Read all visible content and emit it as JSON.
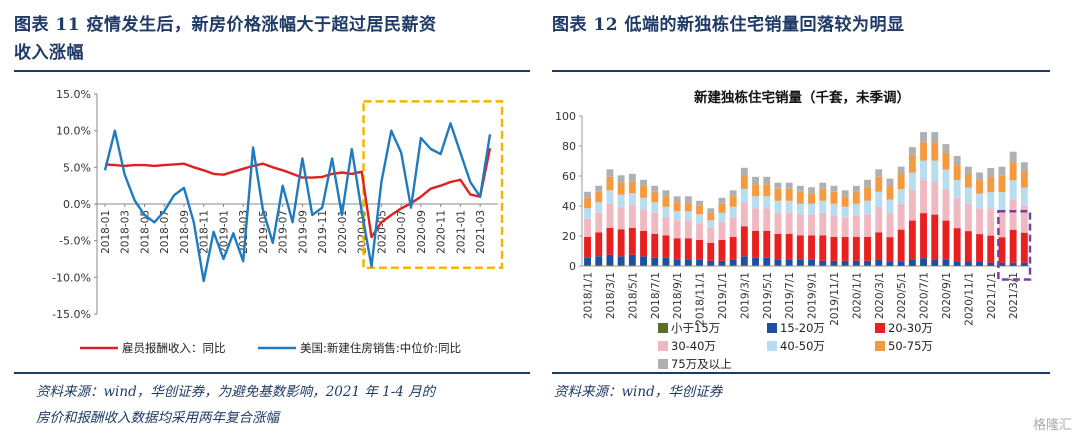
{
  "left": {
    "title_line1": "图表 11   疫情发生后，新房价格涨幅大于超过居民薪资",
    "title_line2": "收入涨幅",
    "source_line1": "资料来源：wind，华创证券，为避免基数影响，2021 年 1-4 月的",
    "source_line2": "房价和报酬收入数据均采用两年复合涨幅"
  },
  "right": {
    "title": "图表 12   低端的新独栋住宅销量回落较为明显",
    "source": "资料来源：wind，华创证券"
  },
  "watermark": "格隆汇",
  "colors": {
    "title": "#1f3a66",
    "red": "#e02020",
    "blue": "#1f7ac0",
    "highlight_yellow": "#f5b400",
    "highlight_purple": "#7a3fa0"
  },
  "chart_data": [
    {
      "type": "line",
      "title": "",
      "x_ticks": [
        "2018-01",
        "2018-03",
        "2018-05",
        "2018-07",
        "2018-09",
        "2018-11",
        "2019-01",
        "2019-03",
        "2019-05",
        "2019-07",
        "2019-09",
        "2019-11",
        "2020-01",
        "2020-03",
        "2020-05",
        "2020-07",
        "2020-09",
        "2020-11",
        "2021-01",
        "2021-03"
      ],
      "y_ticks": [
        "15.0%",
        "10.0%",
        "5.0%",
        "0.0%",
        "-5.0%",
        "-10.0%",
        "-15.0%"
      ],
      "ylim": [
        -15,
        15
      ],
      "x": [
        "2018-01",
        "2018-02",
        "2018-03",
        "2018-04",
        "2018-05",
        "2018-06",
        "2018-07",
        "2018-08",
        "2018-09",
        "2018-10",
        "2018-11",
        "2018-12",
        "2019-01",
        "2019-02",
        "2019-03",
        "2019-04",
        "2019-05",
        "2019-06",
        "2019-07",
        "2019-08",
        "2019-09",
        "2019-10",
        "2019-11",
        "2019-12",
        "2020-01",
        "2020-02",
        "2020-03",
        "2020-04",
        "2020-05",
        "2020-06",
        "2020-07",
        "2020-08",
        "2020-09",
        "2020-10",
        "2020-11",
        "2020-12",
        "2021-01",
        "2021-02",
        "2021-03",
        "2021-04"
      ],
      "series": [
        {
          "name": "雇员报酬收入：同比",
          "color": "#e02020",
          "values": [
            5.4,
            5.3,
            5.2,
            5.3,
            5.3,
            5.2,
            5.3,
            5.4,
            5.5,
            5.0,
            4.6,
            4.1,
            4.0,
            4.4,
            4.8,
            5.2,
            5.5,
            5.0,
            4.6,
            4.1,
            3.6,
            3.6,
            3.7,
            4.1,
            4.3,
            4.1,
            4.4,
            -4.5,
            -2.5,
            -1.5,
            -0.6,
            0.1,
            1.0,
            2.1,
            2.5,
            3.0,
            3.3,
            1.3,
            1.0,
            7.6
          ]
        },
        {
          "name": "美国:新建住房销售:中位价:同比",
          "color": "#1f7ac0",
          "values": [
            4.6,
            10.0,
            4.0,
            0.5,
            -1.5,
            -2.5,
            -1.0,
            1.2,
            2.2,
            -2.5,
            -10.5,
            -3.8,
            -7.5,
            -4.0,
            -7.8,
            7.7,
            -0.8,
            -5.3,
            2.5,
            -2.5,
            6.2,
            -1.5,
            -0.5,
            6.2,
            -1.5,
            7.5,
            -1.0,
            -8.5,
            3.0,
            10.0,
            7.0,
            -0.5,
            9.0,
            7.5,
            6.8,
            11.0,
            7.0,
            3.0,
            1.0,
            9.5
          ]
        }
      ],
      "legend": [
        "雇员报酬收入：同比",
        "美国:新建住房销售:中位价:同比"
      ],
      "legend_position": "bottom"
    },
    {
      "type": "stacked_bar",
      "title": "新建独栋住宅销量（千套，未季调）",
      "ylim": [
        0,
        100
      ],
      "y_ticks": [
        "0",
        "20",
        "40",
        "60",
        "80",
        "100"
      ],
      "x_ticks": [
        "2018/1/1",
        "2018/3/1",
        "2018/5/1",
        "2018/7/1",
        "2018/9/1",
        "2018/11/1",
        "2019/1/1",
        "2019/3/1",
        "2019/5/1",
        "2019/7/1",
        "2019/9/1",
        "2019/11/1",
        "2020/1/1",
        "2020/3/1",
        "2020/5/1",
        "2020/7/1",
        "2020/9/1",
        "2020/11/1",
        "2021/1/1",
        "2021/3/1"
      ],
      "categories": [
        "2018/1",
        "2018/2",
        "2018/3",
        "2018/4",
        "2018/5",
        "2018/6",
        "2018/7",
        "2018/8",
        "2018/9",
        "2018/10",
        "2018/11",
        "2018/12",
        "2019/1",
        "2019/2",
        "2019/3",
        "2019/4",
        "2019/5",
        "2019/6",
        "2019/7",
        "2019/8",
        "2019/9",
        "2019/10",
        "2019/11",
        "2019/12",
        "2020/1",
        "2020/2",
        "2020/3",
        "2020/4",
        "2020/5",
        "2020/6",
        "2020/7",
        "2020/8",
        "2020/9",
        "2020/10",
        "2020/11",
        "2020/12",
        "2021/1",
        "2021/2",
        "2021/3",
        "2021/4"
      ],
      "series": [
        {
          "name": "小于15万",
          "color": "#5a6e2a",
          "values": [
            0.5,
            0.5,
            0.5,
            0.5,
            0.5,
            0.5,
            0.5,
            0.5,
            0.5,
            0.5,
            0.5,
            0.5,
            0.5,
            0.5,
            0.5,
            0.5,
            0.5,
            0.5,
            0.5,
            0.5,
            0.5,
            0.5,
            0.5,
            0.5,
            0.5,
            0.5,
            0.5,
            0.3,
            0.3,
            0.3,
            0.3,
            0.3,
            0.3,
            0.3,
            0.3,
            0.3,
            0.3,
            0.2,
            0.2,
            0.2
          ]
        },
        {
          "name": "15-20万",
          "color": "#1f4fa0",
          "values": [
            5,
            6,
            7,
            6,
            7,
            6,
            5,
            5,
            4,
            4,
            4,
            3,
            3,
            4,
            6,
            5,
            5,
            4,
            4,
            4,
            4,
            3,
            3,
            3,
            3,
            3,
            4,
            3,
            3,
            4,
            5,
            4,
            4,
            3,
            3,
            3,
            2,
            2,
            2,
            2
          ]
        },
        {
          "name": "20-30万",
          "color": "#e82020",
          "values": [
            14,
            16,
            18,
            18,
            18,
            17,
            16,
            15,
            14,
            14,
            13,
            12,
            14,
            15,
            20,
            18,
            18,
            17,
            17,
            16,
            16,
            17,
            16,
            16,
            16,
            16,
            18,
            16,
            21,
            26,
            30,
            30,
            26,
            22,
            20,
            18,
            18,
            17,
            22,
            20
          ]
        },
        {
          "name": "30-40万",
          "color": "#f0b8c0",
          "values": [
            12,
            13,
            16,
            15,
            15,
            14,
            14,
            12,
            12,
            12,
            11,
            10,
            12,
            13,
            16,
            15,
            15,
            14,
            14,
            14,
            14,
            15,
            14,
            13,
            14,
            15,
            17,
            16,
            17,
            20,
            22,
            22,
            21,
            20,
            18,
            17,
            18,
            18,
            20,
            18
          ]
        },
        {
          "name": "40-50万",
          "color": "#b8ddf0",
          "values": [
            7,
            7,
            9,
            8,
            8,
            8,
            7,
            7,
            6,
            6,
            6,
            5,
            6,
            7,
            9,
            8,
            8,
            8,
            8,
            7,
            7,
            8,
            8,
            7,
            8,
            9,
            10,
            9,
            10,
            12,
            13,
            14,
            13,
            12,
            11,
            10,
            11,
            12,
            13,
            12
          ]
        },
        {
          "name": "50-75万",
          "color": "#f59a40",
          "values": [
            7,
            7,
            9,
            8,
            8,
            8,
            7,
            7,
            6,
            6,
            6,
            5,
            6,
            7,
            9,
            8,
            8,
            8,
            8,
            8,
            7,
            8,
            8,
            7,
            8,
            9,
            10,
            9,
            10,
            11,
            12,
            12,
            11,
            10,
            9,
            9,
            10,
            11,
            12,
            11
          ]
        },
        {
          "name": "75万及以上",
          "color": "#b0b0b0",
          "values": [
            4,
            4,
            5,
            5,
            5,
            4,
            4,
            4,
            4,
            4,
            3,
            3,
            4,
            4,
            5,
            5,
            5,
            4,
            4,
            4,
            4,
            4,
            4,
            4,
            4,
            5,
            5,
            5,
            5,
            6,
            7,
            7,
            6,
            6,
            5,
            5,
            6,
            6,
            7,
            6
          ]
        }
      ],
      "legend_position": "bottom"
    }
  ]
}
